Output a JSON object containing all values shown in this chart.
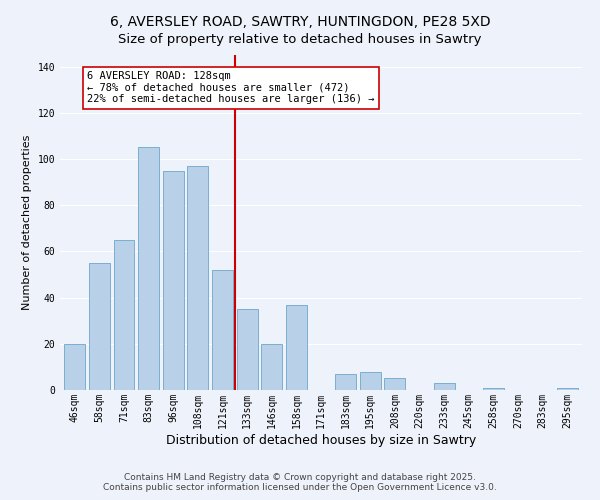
{
  "title": "6, AVERSLEY ROAD, SAWTRY, HUNTINGDON, PE28 5XD",
  "subtitle": "Size of property relative to detached houses in Sawtry",
  "xlabel": "Distribution of detached houses by size in Sawtry",
  "ylabel": "Number of detached properties",
  "bar_labels": [
    "46sqm",
    "58sqm",
    "71sqm",
    "83sqm",
    "96sqm",
    "108sqm",
    "121sqm",
    "133sqm",
    "146sqm",
    "158sqm",
    "171sqm",
    "183sqm",
    "195sqm",
    "208sqm",
    "220sqm",
    "233sqm",
    "245sqm",
    "258sqm",
    "270sqm",
    "283sqm",
    "295sqm"
  ],
  "bar_values": [
    20,
    55,
    65,
    105,
    95,
    97,
    52,
    35,
    20,
    37,
    0,
    7,
    8,
    5,
    0,
    3,
    0,
    1,
    0,
    0,
    1
  ],
  "bar_color": "#b8d0e8",
  "bar_edge_color": "#7aaed0",
  "vline_color": "#cc0000",
  "annotation_title": "6 AVERSLEY ROAD: 128sqm",
  "annotation_line1": "← 78% of detached houses are smaller (472)",
  "annotation_line2": "22% of semi-detached houses are larger (136) →",
  "box_facecolor": "#ffffff",
  "box_edgecolor": "#cc0000",
  "ylim": [
    0,
    145
  ],
  "yticks": [
    0,
    20,
    40,
    60,
    80,
    100,
    120,
    140
  ],
  "footnote1": "Contains HM Land Registry data © Crown copyright and database right 2025.",
  "footnote2": "Contains public sector information licensed under the Open Government Licence v3.0.",
  "background_color": "#eef2fa",
  "grid_color": "#ffffff",
  "title_fontsize": 10,
  "subtitle_fontsize": 9.5,
  "xlabel_fontsize": 9,
  "ylabel_fontsize": 8,
  "tick_fontsize": 7,
  "annot_fontsize": 7.5,
  "footnote_fontsize": 6.5
}
